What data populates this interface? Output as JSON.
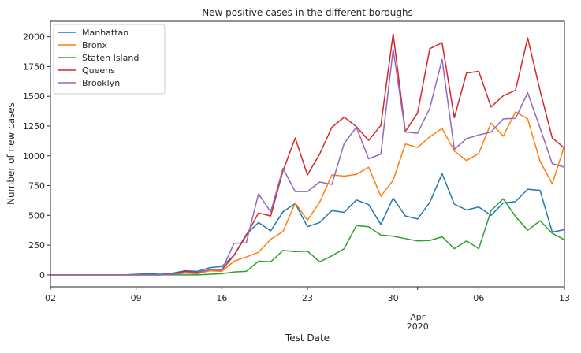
{
  "chart_data": {
    "type": "line",
    "title": "New positive cases in the different boroughs",
    "xlabel": "Test Date",
    "ylabel": "Number of new cases",
    "x_start_label": "2020-03-02",
    "x_tick_labels": [
      "02",
      "09",
      "16",
      "23",
      "30",
      "Apr\n2020",
      "06",
      "13"
    ],
    "month_label": "Apr",
    "year_label": "2020",
    "x": [
      "2020-03-02",
      "2020-03-03",
      "2020-03-04",
      "2020-03-05",
      "2020-03-06",
      "2020-03-07",
      "2020-03-08",
      "2020-03-09",
      "2020-03-10",
      "2020-03-11",
      "2020-03-12",
      "2020-03-13",
      "2020-03-14",
      "2020-03-15",
      "2020-03-16",
      "2020-03-17",
      "2020-03-18",
      "2020-03-19",
      "2020-03-20",
      "2020-03-21",
      "2020-03-22",
      "2020-03-23",
      "2020-03-24",
      "2020-03-25",
      "2020-03-26",
      "2020-03-27",
      "2020-03-28",
      "2020-03-29",
      "2020-03-30",
      "2020-03-31",
      "2020-04-01",
      "2020-04-02",
      "2020-04-03",
      "2020-04-04",
      "2020-04-05",
      "2020-04-06",
      "2020-04-07",
      "2020-04-08",
      "2020-04-09",
      "2020-04-10",
      "2020-04-11",
      "2020-04-12",
      "2020-04-13"
    ],
    "ylim": [
      -100,
      2130
    ],
    "yticks": [
      0,
      250,
      500,
      750,
      1000,
      1250,
      1500,
      1750,
      2000
    ],
    "grid": false,
    "legend_position": "top-left",
    "series": [
      {
        "name": "Manhattan",
        "color": "#1f77b4",
        "values": [
          0,
          0,
          0,
          0,
          0,
          0,
          0,
          5,
          10,
          5,
          15,
          35,
          30,
          60,
          70,
          165,
          340,
          440,
          370,
          530,
          600,
          405,
          440,
          540,
          525,
          630,
          590,
          425,
          645,
          495,
          470,
          610,
          850,
          595,
          545,
          570,
          500,
          605,
          615,
          720,
          710,
          360,
          380
        ]
      },
      {
        "name": "Bronx",
        "color": "#ff7f0e",
        "values": [
          0,
          0,
          0,
          0,
          0,
          0,
          0,
          0,
          0,
          0,
          5,
          15,
          10,
          35,
          30,
          115,
          150,
          190,
          300,
          365,
          605,
          460,
          610,
          840,
          830,
          845,
          905,
          660,
          795,
          1100,
          1070,
          1160,
          1230,
          1040,
          960,
          1020,
          1275,
          1165,
          1370,
          1310,
          955,
          765,
          1085
        ]
      },
      {
        "name": "Staten Island",
        "color": "#2ca02c",
        "values": [
          0,
          0,
          0,
          0,
          0,
          0,
          0,
          0,
          0,
          0,
          0,
          0,
          0,
          5,
          10,
          25,
          30,
          115,
          110,
          205,
          195,
          200,
          110,
          160,
          220,
          415,
          405,
          335,
          325,
          305,
          285,
          290,
          320,
          220,
          285,
          220,
          540,
          640,
          490,
          375,
          455,
          350,
          295
        ]
      },
      {
        "name": "Queens",
        "color": "#d62728",
        "values": [
          0,
          0,
          0,
          0,
          0,
          0,
          0,
          0,
          0,
          0,
          10,
          30,
          20,
          45,
          40,
          165,
          330,
          520,
          495,
          875,
          1150,
          840,
          1015,
          1240,
          1325,
          1245,
          1130,
          1255,
          2025,
          1205,
          1360,
          1900,
          1950,
          1320,
          1695,
          1710,
          1410,
          1505,
          1550,
          1990,
          1550,
          1150,
          1065
        ]
      },
      {
        "name": "Brooklyn",
        "color": "#9467bd",
        "values": [
          0,
          0,
          0,
          0,
          0,
          0,
          0,
          0,
          0,
          0,
          5,
          20,
          15,
          45,
          40,
          265,
          270,
          680,
          530,
          895,
          700,
          700,
          780,
          760,
          1105,
          1240,
          975,
          1015,
          1895,
          1200,
          1190,
          1400,
          1810,
          1055,
          1145,
          1175,
          1200,
          1310,
          1315,
          1530,
          1235,
          935,
          905
        ]
      }
    ]
  }
}
